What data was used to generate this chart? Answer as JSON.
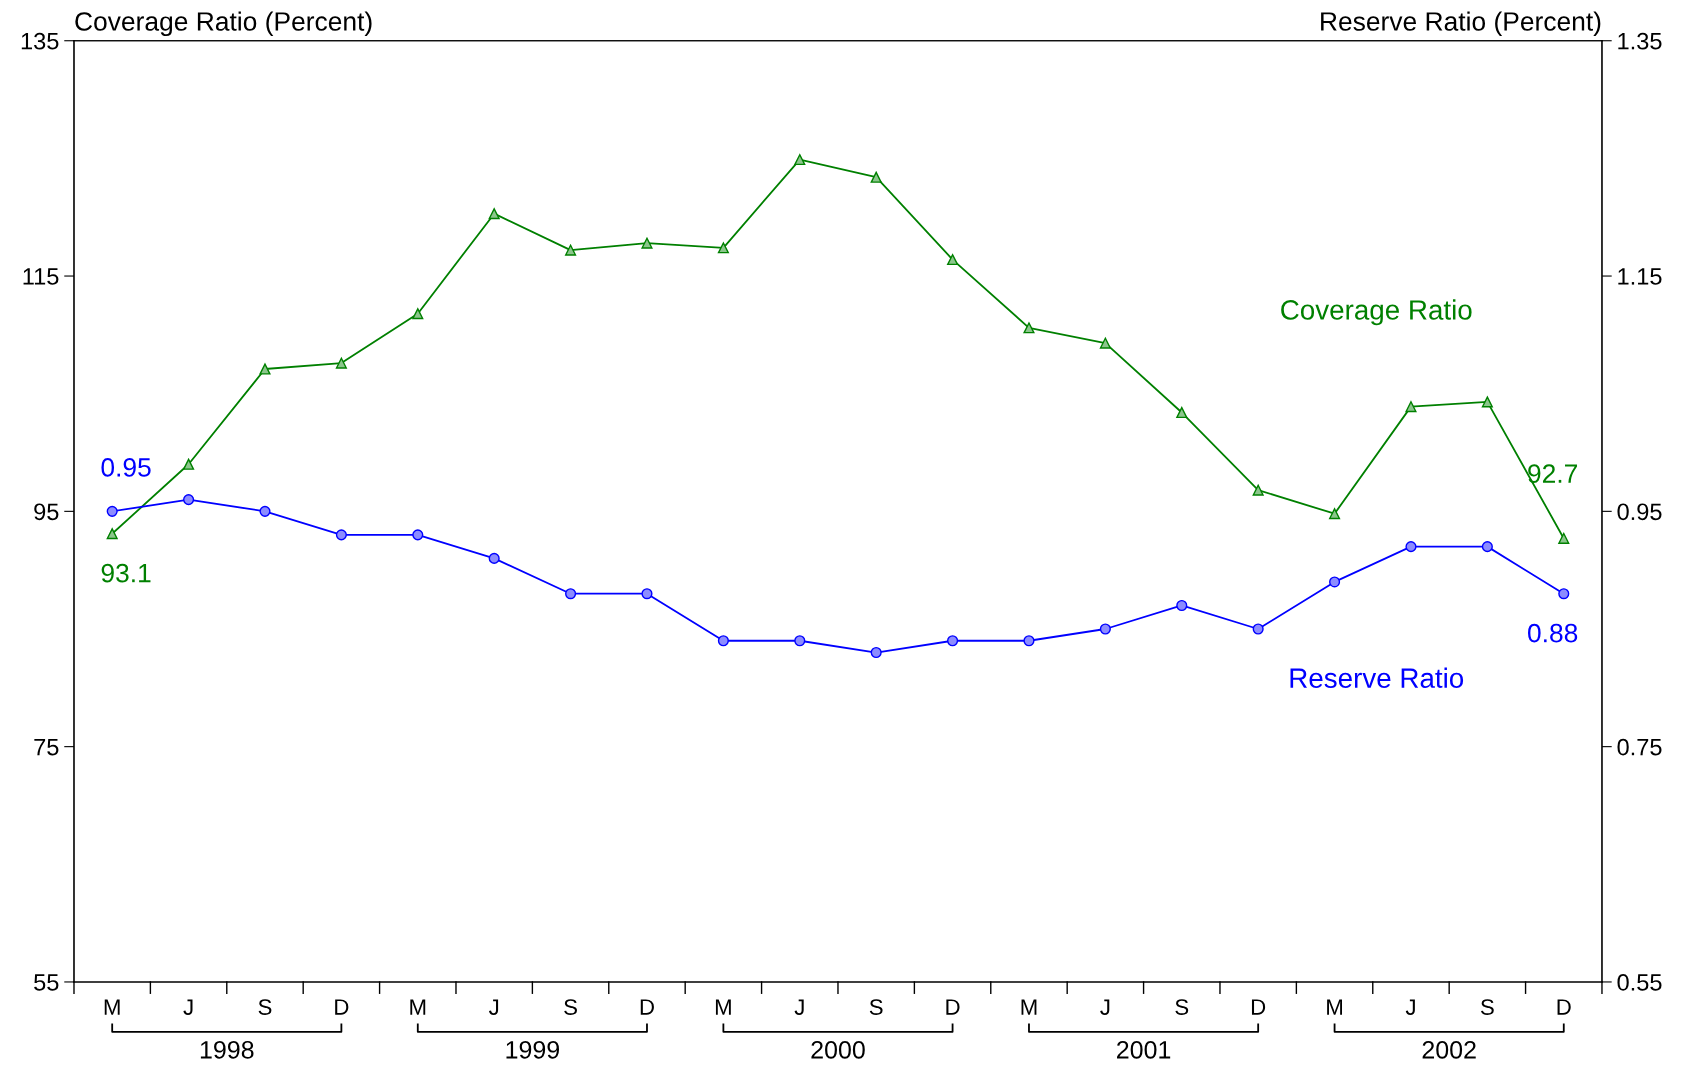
{
  "chart_data": {
    "type": "line",
    "categories": [
      "M",
      "J",
      "S",
      "D",
      "M",
      "J",
      "S",
      "D",
      "M",
      "J",
      "S",
      "D",
      "M",
      "J",
      "S",
      "D",
      "M",
      "J",
      "S",
      "D"
    ],
    "ylabel": "Coverage Ratio (Percent)",
    "y2label": "Reserve Ratio (Percent)",
    "ylim": [
      55,
      135
    ],
    "yticks": [
      55,
      75,
      95,
      115,
      135
    ],
    "y2lim": [
      0.55,
      1.35
    ],
    "y2ticks": [
      0.55,
      0.75,
      0.95,
      1.15,
      1.35
    ],
    "legend": false,
    "grid": false,
    "annotations": [
      "1998",
      "1999",
      "2000",
      "2001",
      "2002"
    ],
    "series": [
      {
        "name": "Coverage Ratio",
        "color": "#008000",
        "marker": "triangle",
        "values": [
          93.1,
          99.0,
          107.1,
          107.6,
          111.8,
          120.3,
          117.2,
          117.8,
          117.4,
          124.9,
          123.4,
          116.4,
          110.6,
          109.3,
          103.4,
          96.8,
          94.8,
          103.9,
          104.3,
          92.7
        ],
        "value_labels": [
          "93.1",
          null,
          null,
          null,
          null,
          null,
          null,
          null,
          null,
          null,
          null,
          null,
          null,
          null,
          null,
          null,
          null,
          null,
          null,
          "92.7"
        ]
      },
      {
        "name": "Reserve Ratio",
        "color": "#0000ff",
        "marker": "circle",
        "axis": "y2",
        "values": [
          0.95,
          0.96,
          0.95,
          0.93,
          0.93,
          0.91,
          0.88,
          0.88,
          0.84,
          0.84,
          0.83,
          0.84,
          0.84,
          0.85,
          0.87,
          0.85,
          0.89,
          0.92,
          0.92,
          0.88
        ],
        "value_labels": [
          "0.95",
          null,
          null,
          null,
          null,
          null,
          null,
          null,
          null,
          null,
          null,
          null,
          null,
          null,
          null,
          null,
          null,
          null,
          null,
          "0.88"
        ]
      }
    ]
  }
}
